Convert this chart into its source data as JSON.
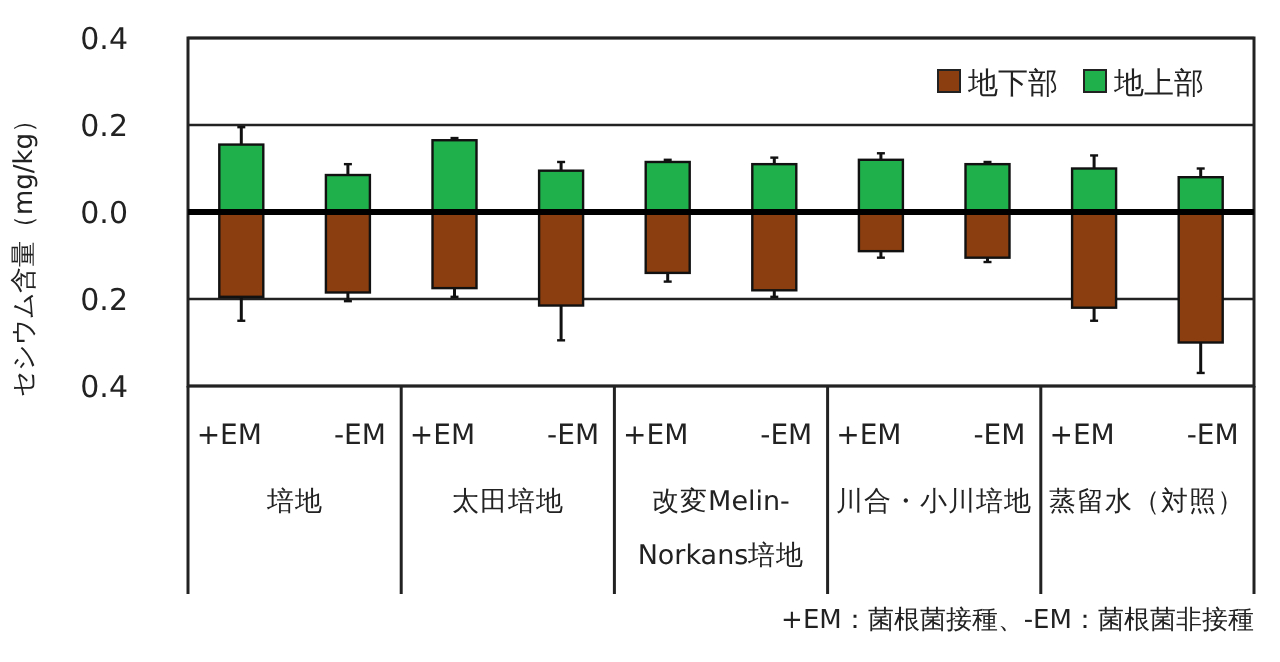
{
  "chart_data": {
    "type": "bar",
    "stacked": true,
    "ylabel": "セシウム含量（mg/kg）",
    "categories": [
      "+EM",
      "-EM",
      "+EM",
      "-EM",
      "+EM",
      "-EM",
      "+EM",
      "-EM",
      "+EM",
      "-EM"
    ],
    "series": [
      {
        "name": "地下部",
        "color": "#8b3e0f",
        "values": [
          -0.195,
          -0.185,
          -0.175,
          -0.215,
          -0.14,
          -0.18,
          -0.09,
          -0.105,
          -0.22,
          -0.3
        ],
        "errors": [
          0.055,
          0.02,
          0.02,
          0.08,
          0.02,
          0.015,
          0.015,
          0.01,
          0.03,
          0.07
        ]
      },
      {
        "name": "地上部",
        "color": "#1fb04c",
        "values": [
          0.155,
          0.085,
          0.165,
          0.095,
          0.115,
          0.11,
          0.12,
          0.11,
          0.1,
          0.08
        ],
        "errors": [
          0.04,
          0.025,
          0.005,
          0.02,
          0.005,
          0.015,
          0.015,
          0.005,
          0.03,
          0.02
        ]
      }
    ],
    "ylim": [
      -0.4,
      0.4
    ],
    "yticks": [
      {
        "value": -0.4,
        "label": "0.4"
      },
      {
        "value": -0.2,
        "label": "0.2"
      },
      {
        "value": 0,
        "label": "0.0"
      },
      0.2,
      0.4
    ],
    "grid": "y",
    "legend": "top right",
    "annotations": [
      "培地",
      "太田培地",
      "改変Melin-Norkans培地",
      "川合・小川培地",
      "蒸留水（対照）",
      "+EM：菌根菌接種、-EM：菌根菌非接種"
    ]
  }
}
